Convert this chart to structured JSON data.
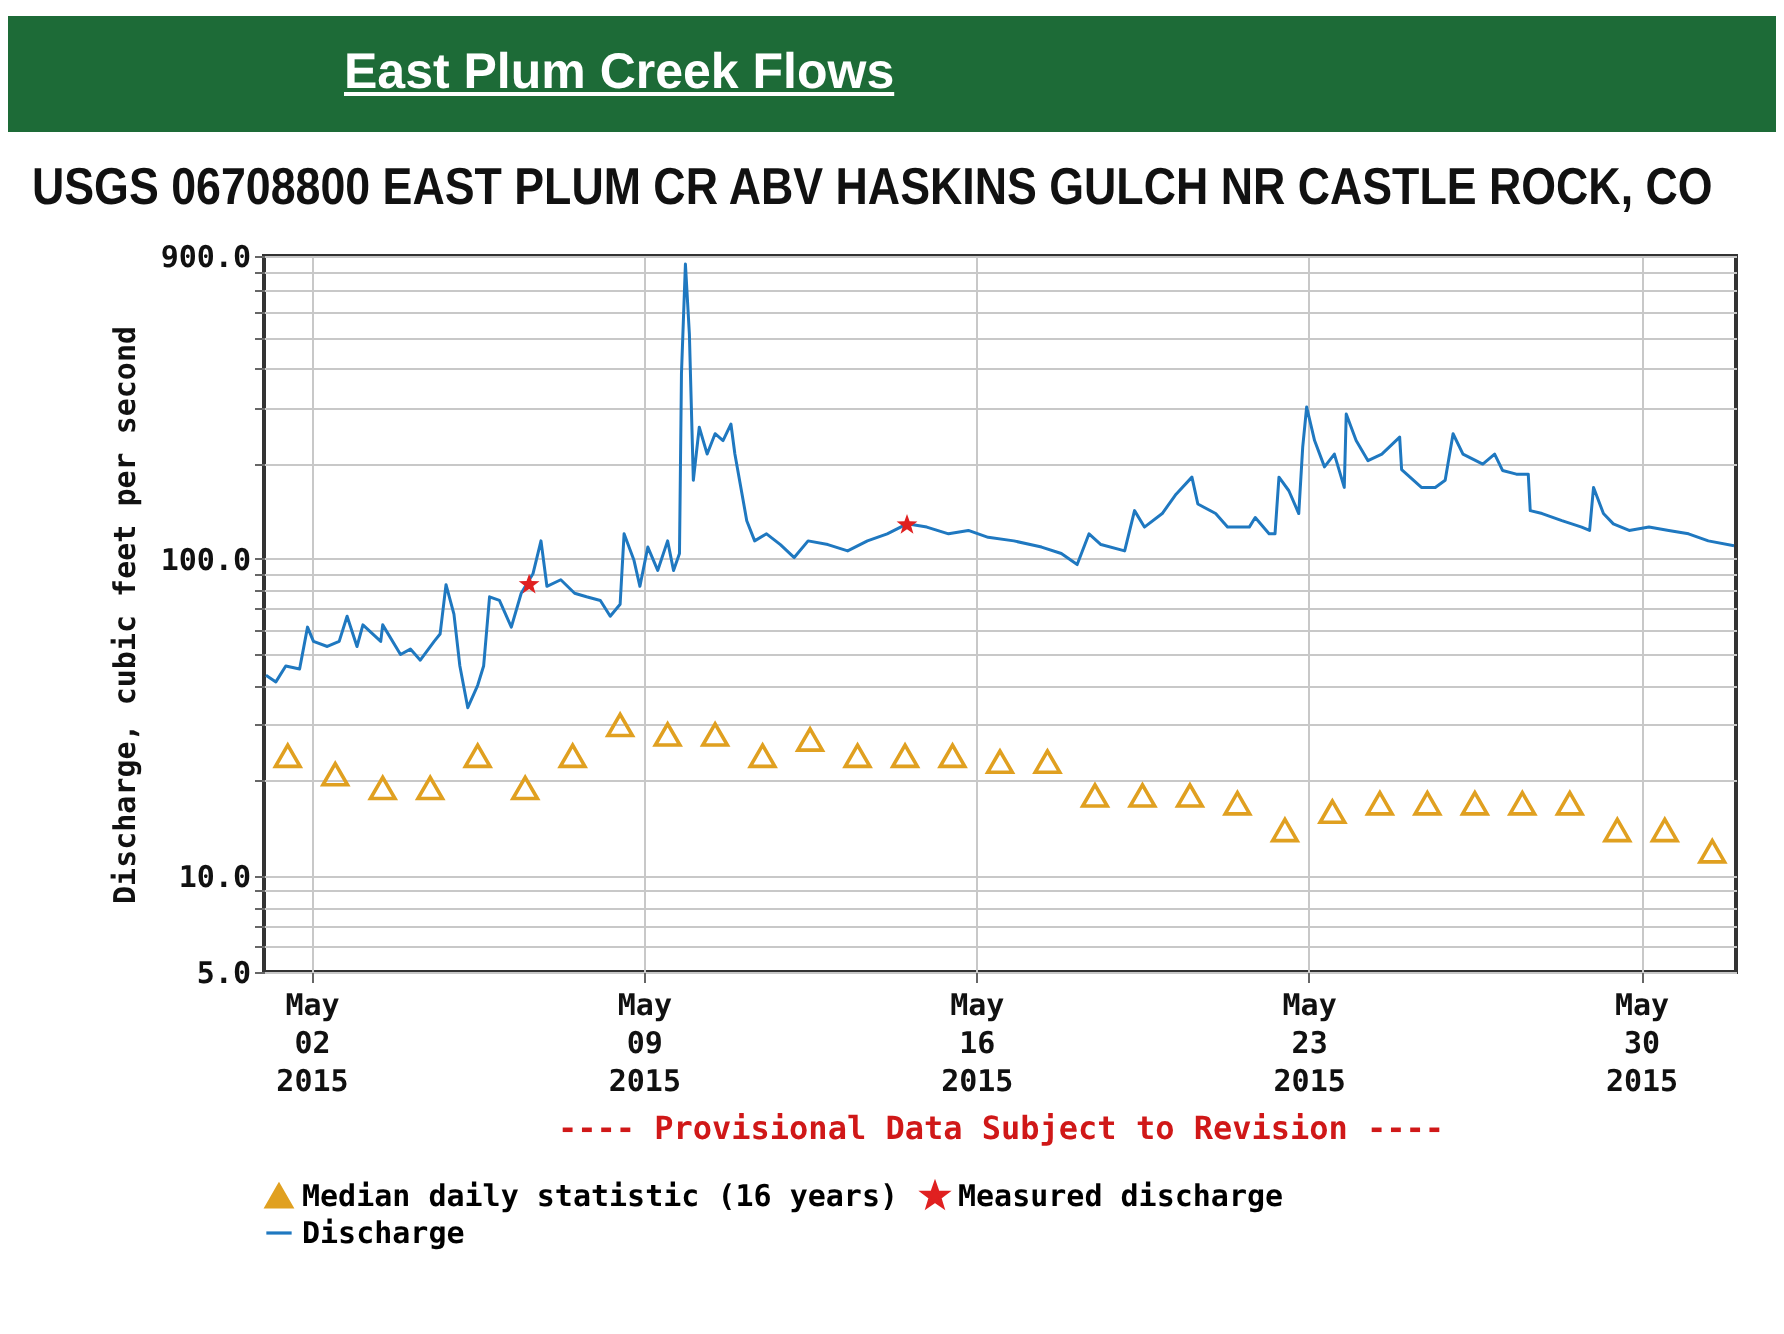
{
  "chart_data": {
    "type": "line",
    "title": "East Plum Creek Flows",
    "subtitle": "USGS 06708800 EAST PLUM CR ABV HASKINS GULCH NR CASTLE ROCK, CO",
    "ylabel": "Discharge, cubic feet per second",
    "annotations": [
      "---- Provisional Data Subject to Revision ----"
    ],
    "xlim": [
      "2015-05-01",
      "2015-06-01"
    ],
    "xticks": [
      {
        "value": "2015-05-02",
        "label": "May\n02\n2015"
      },
      {
        "value": "2015-05-09",
        "label": "May\n09\n2015"
      },
      {
        "value": "2015-05-16",
        "label": "May\n16\n2015"
      },
      {
        "value": "2015-05-23",
        "label": "May\n23\n2015"
      },
      {
        "value": "2015-05-30",
        "label": "May\n30\n2015"
      }
    ],
    "ylim": [
      5,
      900
    ],
    "yticks": [
      {
        "value": 5,
        "label": "5.0"
      },
      {
        "value": 6,
        "label": null
      },
      {
        "value": 7,
        "label": null
      },
      {
        "value": 8,
        "label": null
      },
      {
        "value": 9,
        "label": null
      },
      {
        "value": 10,
        "label": "10.0"
      },
      {
        "value": 20,
        "label": null
      },
      {
        "value": 30,
        "label": null
      },
      {
        "value": 40,
        "label": null
      },
      {
        "value": 50,
        "label": null
      },
      {
        "value": 60,
        "label": null
      },
      {
        "value": 70,
        "label": null
      },
      {
        "value": 80,
        "label": null
      },
      {
        "value": 90,
        "label": null
      },
      {
        "value": 100,
        "label": "100.0"
      },
      {
        "value": 200,
        "label": null
      },
      {
        "value": 300,
        "label": null
      },
      {
        "value": 400,
        "label": null
      },
      {
        "value": 500,
        "label": null
      },
      {
        "value": 600,
        "label": null
      },
      {
        "value": 700,
        "label": null
      },
      {
        "value": 800,
        "label": null
      },
      {
        "value": 900,
        "label": "900.0"
      }
    ],
    "log": true,
    "grid": true,
    "legend": "bottom",
    "series": [
      {
        "name": "Median daily statistic (16 years)",
        "type": "scatter",
        "marker": "triangle",
        "color": "#e0a020",
        "x": [
          "2015-05-01T12:00",
          "2015-05-02T12:00",
          "2015-05-03T12:00",
          "2015-05-04T12:00",
          "2015-05-05T12:00",
          "2015-05-06T12:00",
          "2015-05-07T12:00",
          "2015-05-08T12:00",
          "2015-05-09T12:00",
          "2015-05-10T12:00",
          "2015-05-11T12:00",
          "2015-05-12T12:00",
          "2015-05-13T12:00",
          "2015-05-14T12:00",
          "2015-05-15T12:00",
          "2015-05-16T12:00",
          "2015-05-17T12:00",
          "2015-05-18T12:00",
          "2015-05-19T12:00",
          "2015-05-20T12:00",
          "2015-05-21T12:00",
          "2015-05-22T12:00",
          "2015-05-23T12:00",
          "2015-05-24T12:00",
          "2015-05-25T12:00",
          "2015-05-26T12:00",
          "2015-05-27T12:00",
          "2015-05-28T12:00",
          "2015-05-29T12:00",
          "2015-05-30T12:00",
          "2015-05-31T12:00"
        ],
        "values": [
          24,
          21,
          19,
          19,
          24,
          19,
          24,
          30,
          28,
          28,
          24,
          27,
          24,
          24,
          24,
          23,
          23,
          18,
          18,
          18,
          17,
          14,
          16,
          17,
          17,
          17,
          17,
          17,
          14,
          14,
          12
        ]
      },
      {
        "name": "Measured discharge",
        "type": "scatter",
        "marker": "star",
        "color": "#e02020",
        "x": [
          "2015-05-06T14:00",
          "2015-05-14T13:00"
        ],
        "values": [
          83,
          128
        ]
      },
      {
        "name": "Discharge",
        "type": "line",
        "marker": "none",
        "color": "#1f78c0",
        "x": [
          "2015-05-01T01:00",
          "2015-05-01T06:00",
          "2015-05-01T11:00",
          "2015-05-01T18:00",
          "2015-05-01T22:00",
          "2015-05-02T01:00",
          "2015-05-02T08:00",
          "2015-05-02T14:00",
          "2015-05-02T18:00",
          "2015-05-02T23:00",
          "2015-05-03T02:00",
          "2015-05-03T11:00",
          "2015-05-03T12:00",
          "2015-05-03T21:00",
          "2015-05-04T02:00",
          "2015-05-04T07:00",
          "2015-05-04T14:00",
          "2015-05-04T17:00",
          "2015-05-04T20:00",
          "2015-05-05T00:00",
          "2015-05-05T03:00",
          "2015-05-05T07:00",
          "2015-05-05T12:00",
          "2015-05-05T15:00",
          "2015-05-05T18:00",
          "2015-05-05T23:00",
          "2015-05-06T05:00",
          "2015-05-06T10:00",
          "2015-05-06T16:00",
          "2015-05-06T20:00",
          "2015-05-06T23:00",
          "2015-05-07T06:00",
          "2015-05-07T13:00",
          "2015-05-07T19:00",
          "2015-05-08T02:00",
          "2015-05-08T07:00",
          "2015-05-08T12:00",
          "2015-05-08T14:00",
          "2015-05-08T19:00",
          "2015-05-08T22:00",
          "2015-05-09T02:00",
          "2015-05-09T07:00",
          "2015-05-09T12:00",
          "2015-05-09T15:00",
          "2015-05-09T18:00",
          "2015-05-09T19:00",
          "2015-05-09T21:00",
          "2015-05-09T23:00",
          "2015-05-10T01:00",
          "2015-05-10T04:00",
          "2015-05-10T08:00",
          "2015-05-10T12:00",
          "2015-05-10T16:00",
          "2015-05-10T20:00",
          "2015-05-10T22:00",
          "2015-05-11T04:00",
          "2015-05-11T08:00",
          "2015-05-11T14:00",
          "2015-05-11T21:00",
          "2015-05-12T04:00",
          "2015-05-12T11:00",
          "2015-05-12T21:00",
          "2015-05-13T07:00",
          "2015-05-13T17:00",
          "2015-05-14T03:00",
          "2015-05-14T13:00",
          "2015-05-14T23:00",
          "2015-05-15T10:00",
          "2015-05-15T20:00",
          "2015-05-16T06:00",
          "2015-05-16T19:00",
          "2015-05-17T09:00",
          "2015-05-17T19:00",
          "2015-05-18T03:00",
          "2015-05-18T09:00",
          "2015-05-18T15:00",
          "2015-05-19T03:00",
          "2015-05-19T08:00",
          "2015-05-19T13:00",
          "2015-05-19T22:00",
          "2015-05-20T05:00",
          "2015-05-20T13:00",
          "2015-05-20T16:00",
          "2015-05-21T01:00",
          "2015-05-21T07:00",
          "2015-05-21T18:00",
          "2015-05-21T21:00",
          "2015-05-22T04:00",
          "2015-05-22T07:00",
          "2015-05-22T09:00",
          "2015-05-22T14:00",
          "2015-05-22T19:00",
          "2015-05-22T21:00",
          "2015-05-22T23:00",
          "2015-05-23T03:00",
          "2015-05-23T08:00",
          "2015-05-23T13:00",
          "2015-05-23T18:00",
          "2015-05-23T19:00",
          "2015-05-24T00:00",
          "2015-05-24T06:00",
          "2015-05-24T13:00",
          "2015-05-24T22:00",
          "2015-05-24T23:00",
          "2015-05-25T09:00",
          "2015-05-25T16:00",
          "2015-05-25T21:00",
          "2015-05-26T01:00",
          "2015-05-26T06:00",
          "2015-05-26T16:00",
          "2015-05-26T22:00",
          "2015-05-27T02:00",
          "2015-05-27T09:00",
          "2015-05-27T15:00",
          "2015-05-27T16:00",
          "2015-05-27T22:00",
          "2015-05-28T08:00",
          "2015-05-28T18:00",
          "2015-05-28T22:00",
          "2015-05-29T00:00",
          "2015-05-29T05:00",
          "2015-05-29T10:00",
          "2015-05-29T18:00",
          "2015-05-30T04:00",
          "2015-05-30T14:00",
          "2015-05-31T00:00",
          "2015-05-31T10:00",
          "2015-05-31T23:00"
        ],
        "values": [
          43,
          41,
          46,
          45,
          61,
          55,
          53,
          55,
          66,
          53,
          62,
          55,
          62,
          50,
          52,
          48,
          55,
          58,
          83,
          67,
          46,
          34,
          40,
          46,
          76,
          74,
          61,
          78,
          90,
          114,
          82,
          86,
          78,
          76,
          74,
          66,
          72,
          120,
          99,
          82,
          109,
          92,
          114,
          92,
          104,
          383,
          849,
          511,
          177,
          260,
          214,
          248,
          236,
          266,
          214,
          132,
          114,
          120,
          111,
          101,
          114,
          111,
          106,
          114,
          120,
          129,
          126,
          120,
          123,
          117,
          114,
          109,
          104,
          96,
          120,
          111,
          106,
          142,
          126,
          139,
          160,
          181,
          149,
          139,
          126,
          126,
          135,
          120,
          120,
          181,
          164,
          139,
          225,
          301,
          236,
          195,
          214,
          168,
          286,
          236,
          204,
          214,
          242,
          191,
          168,
          168,
          177,
          248,
          214,
          199,
          214,
          190,
          185,
          185,
          142,
          139,
          132,
          126,
          123,
          168,
          139,
          129,
          123,
          126,
          123,
          120,
          114,
          110
        ]
      }
    ]
  }
}
